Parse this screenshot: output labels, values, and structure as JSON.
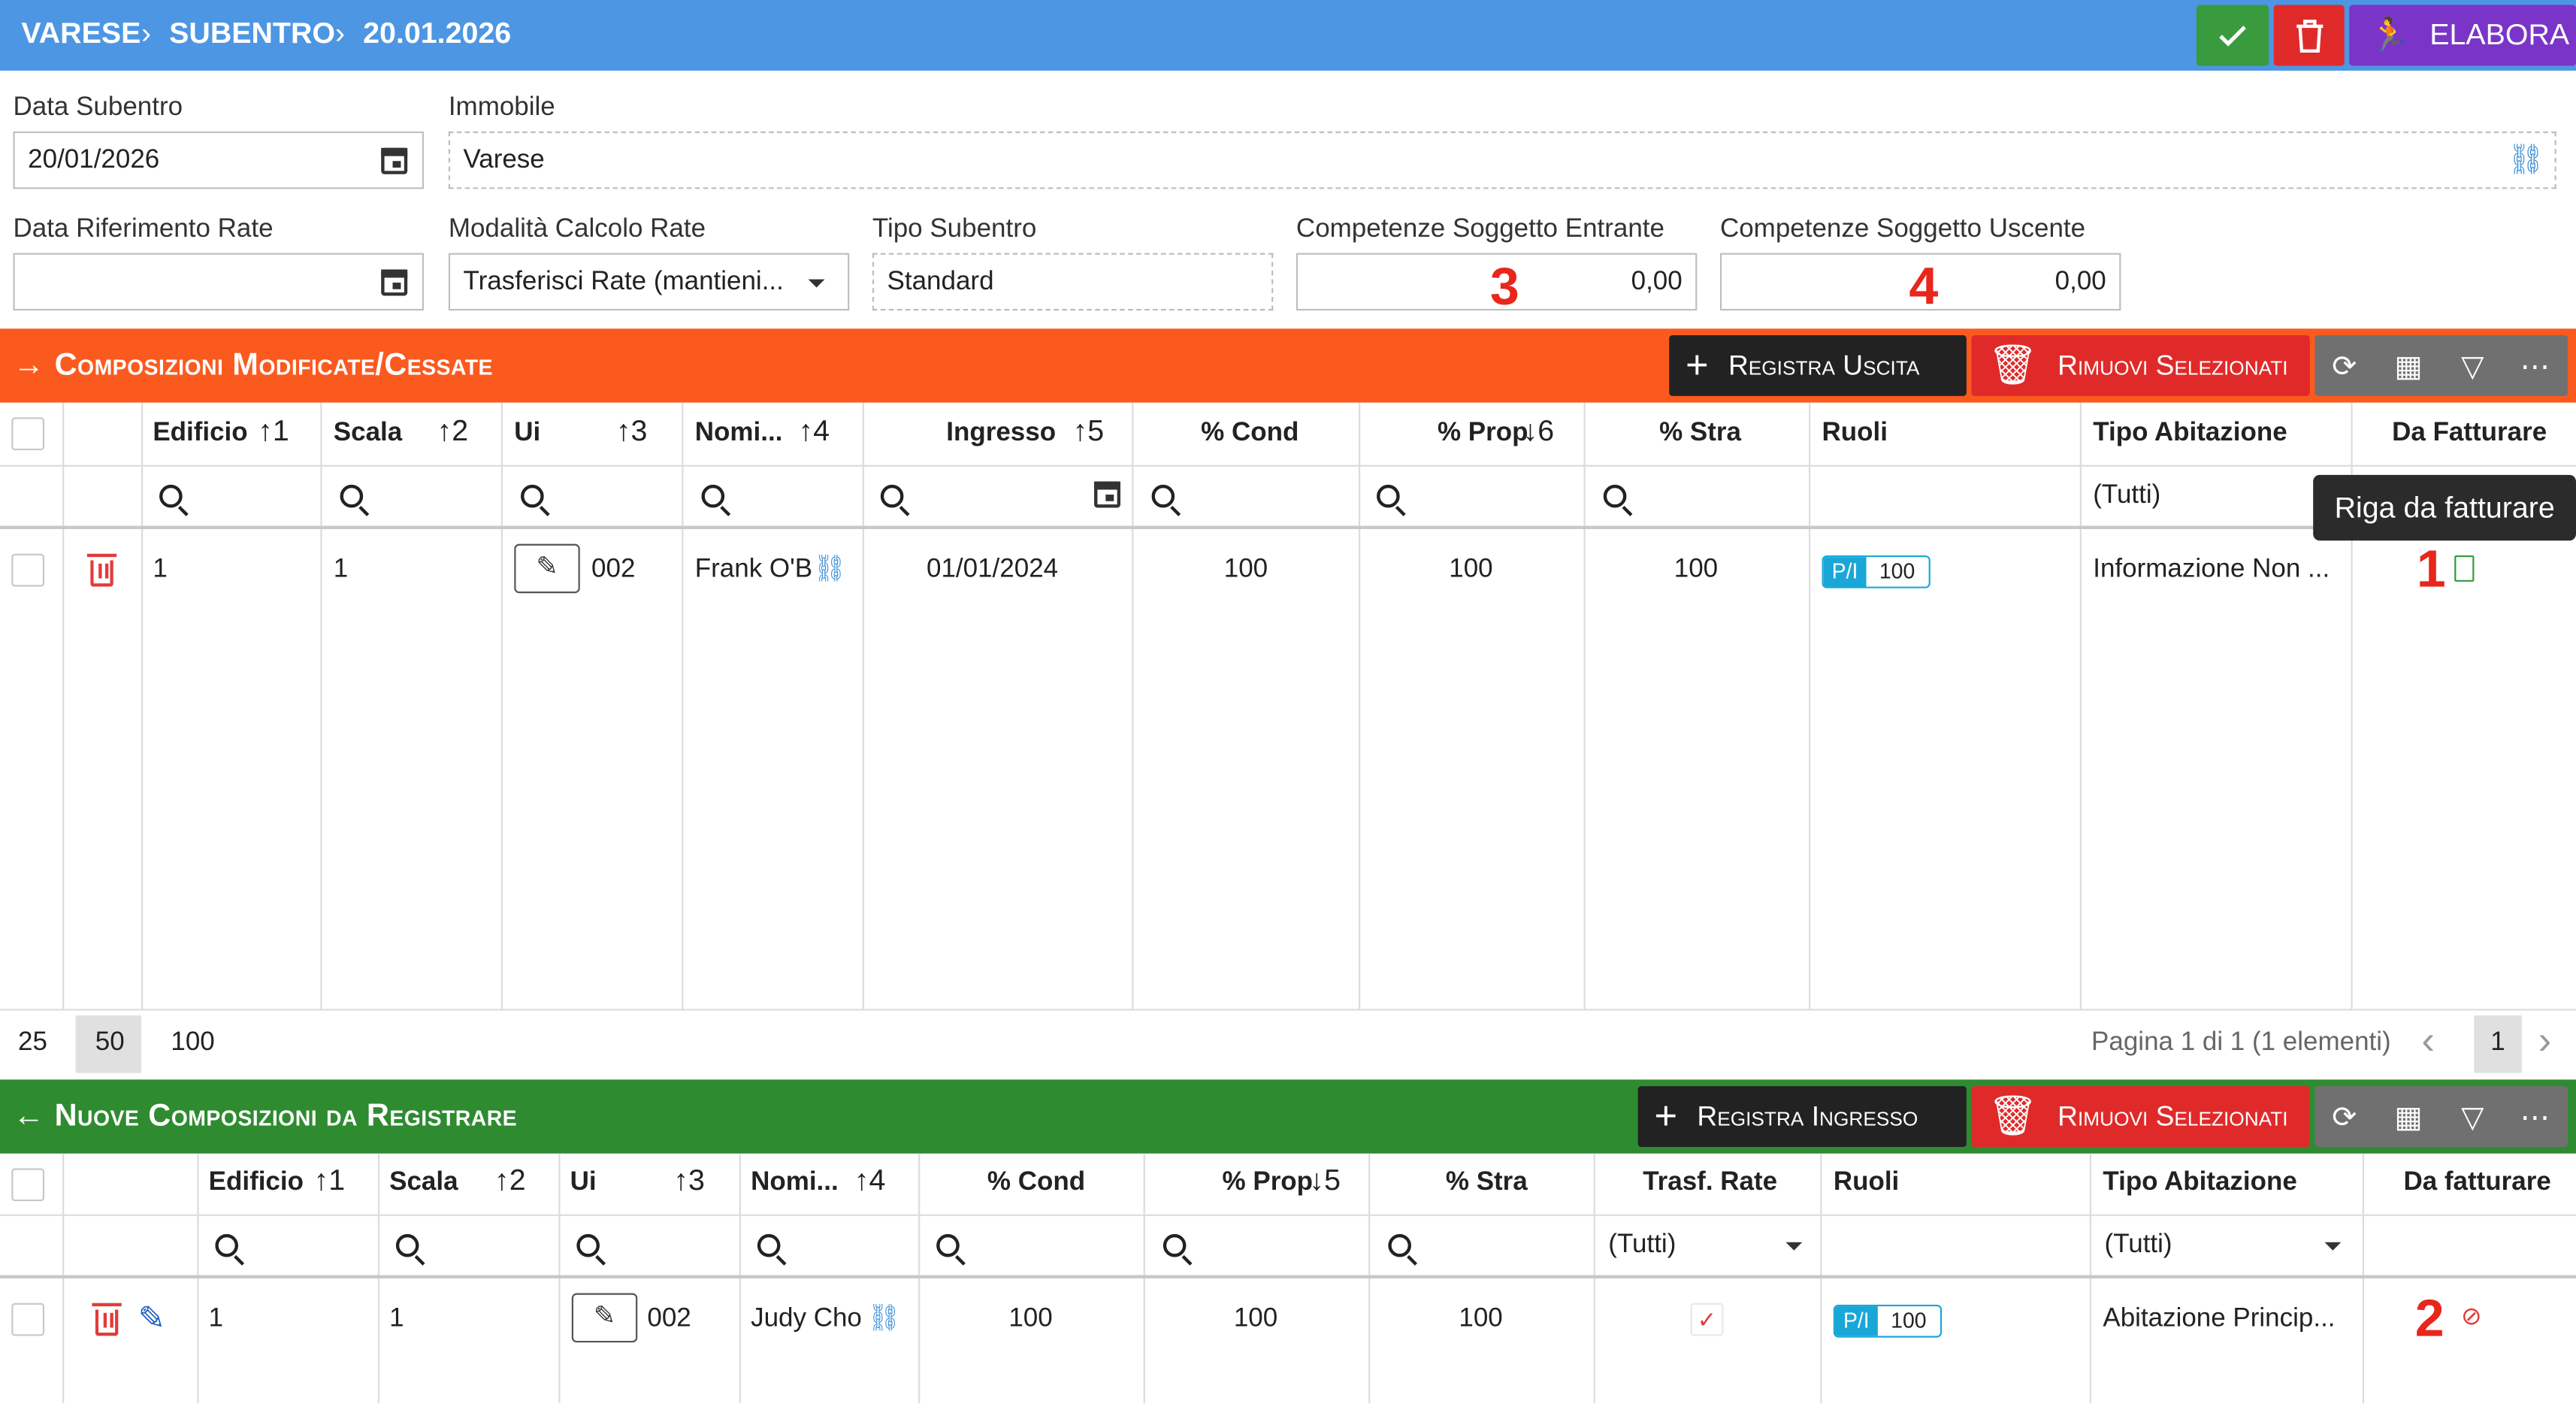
{
  "topbar": {
    "crumbs": [
      "VARESE",
      "SUBENTRO",
      "20.01.2026"
    ],
    "elabora_label": "ELABORA",
    "colors": {
      "bar": "#4d96e3",
      "confirm": "#3a9a3e",
      "delete": "#e02a2a",
      "elabora": "#7a35c8"
    }
  },
  "form": {
    "data_subentro": {
      "label": "Data Subentro",
      "value": "20/01/2026"
    },
    "immobile": {
      "label": "Immobile",
      "value": "Varese"
    },
    "data_riferimento": {
      "label": "Data Riferimento Rate",
      "value": ""
    },
    "modalita": {
      "label": "Modalità Calcolo Rate",
      "value": "Trasferisci Rate (mantieni..."
    },
    "tipo_subentro": {
      "label": "Tipo Subentro",
      "value": "Standard"
    },
    "comp_entrante": {
      "label": "Competenze Soggetto Entrante",
      "value": "0,00",
      "marker": "3"
    },
    "comp_uscente": {
      "label": "Competenze Soggetto Uscente",
      "value": "0,00",
      "marker": "4"
    }
  },
  "section1": {
    "title": "Composizioni Modificate/Cessate",
    "arrow": "→",
    "color": "#fb5a1f",
    "btn_uscita": "Registra Uscita",
    "btn_rimuovi": "Rimuovi Selezionati",
    "headers": [
      "Edificio",
      "Scala",
      "Ui",
      "Nomi...",
      "Ingresso",
      "% Cond",
      "% Prop",
      "% Stra",
      "Ruoli",
      "Tipo Abitazione",
      "Da Fatturare"
    ],
    "sort": [
      "1",
      "2",
      "3",
      "4",
      "5",
      "6"
    ],
    "filter_tutti": "(Tutti)",
    "tooltip": "Riga da fatturare",
    "row": {
      "edificio": "1",
      "scala": "1",
      "ui": "002",
      "nome": "Frank O'B",
      "ingresso": "01/01/2024",
      "cond": "100",
      "prop": "100",
      "stra": "100",
      "ruolo_tag": "P/I",
      "ruolo_val": "100",
      "tipo": "Informazione Non ...",
      "marker": "1"
    },
    "pager": {
      "sizes": [
        "25",
        "50",
        "100"
      ],
      "info": "Pagina 1 di 1 (1 elementi)",
      "page": "1"
    }
  },
  "section2": {
    "title": "Nuove Composizioni da Registrare",
    "arrow": "←",
    "color": "#2e8b30",
    "btn_ingresso": "Registra Ingresso",
    "btn_rimuovi": "Rimuovi Selezionati",
    "headers": [
      "Edificio",
      "Scala",
      "Ui",
      "Nomi...",
      "% Cond",
      "% Prop",
      "% Stra",
      "Trasf. Rate",
      "Ruoli",
      "Tipo Abitazione",
      "Da fatturare"
    ],
    "sort": [
      "1",
      "2",
      "3",
      "4",
      "5"
    ],
    "filter_tutti": "(Tutti)",
    "row": {
      "edificio": "1",
      "scala": "1",
      "ui": "002",
      "nome": "Judy Cho",
      "cond": "100",
      "prop": "100",
      "stra": "100",
      "ruolo_tag": "P/I",
      "ruolo_val": "100",
      "tipo": "Abitazione Princip...",
      "marker": "2"
    }
  }
}
